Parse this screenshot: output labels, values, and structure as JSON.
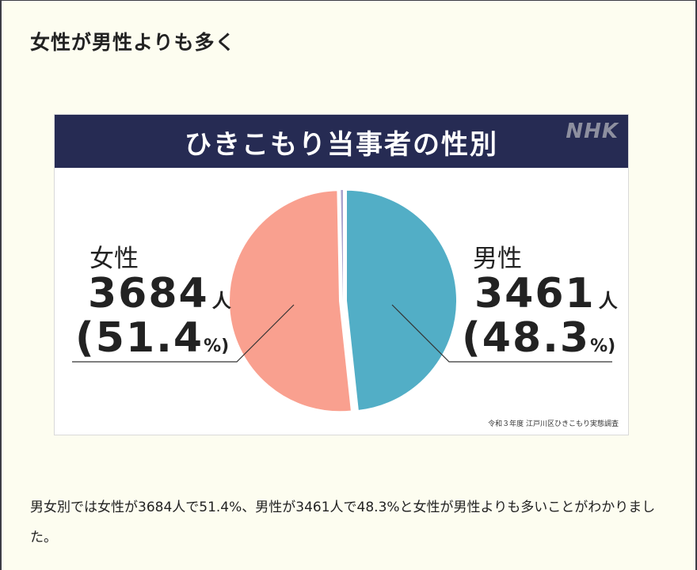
{
  "heading": "女性が男性よりも多く",
  "figure": {
    "title": "ひきこもり当事者の性別",
    "logo": "NHK",
    "source": "令和３年度 江戸川区ひきこもり実態調査",
    "colors": {
      "banner": "#262b53",
      "female": "#f9a08f",
      "male": "#52aec6",
      "other": "#a9a3cf"
    }
  },
  "chart_data": {
    "type": "pie",
    "title": "ひきこもり当事者の性別",
    "slices": [
      {
        "name": "男性",
        "count": 3461,
        "count_text": "3461",
        "unit": "人",
        "percent": 48.3,
        "percent_text": "(48.3",
        "percent_sign": "%)"
      },
      {
        "name": "女性",
        "count": 3684,
        "count_text": "3684",
        "unit": "人",
        "percent": 51.4,
        "percent_text": "(51.4",
        "percent_sign": "%)"
      }
    ]
  },
  "caption": "男女別では女性が3684人で51.4%、男性が3461人で48.3%と女性が男性よりも多いことがわかりました。"
}
